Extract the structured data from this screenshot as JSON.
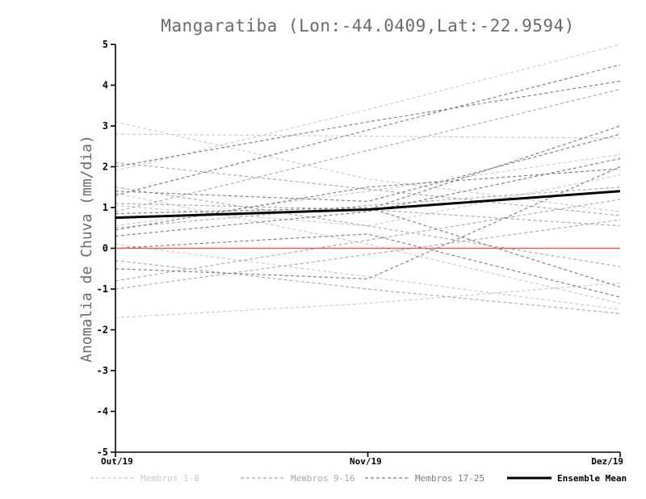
{
  "chart_data": {
    "type": "line",
    "title": "Mangaratiba (Lon:-44.0409,Lat:-22.9594)",
    "ylabel": "Anomalia de Chuva (mm/dia)",
    "xlabel": "",
    "x_tick_labels": [
      "Out/19",
      "Nov/19",
      "Dez/19"
    ],
    "ylim": [
      -5,
      5
    ],
    "y_ticks": [
      -5,
      -4,
      -3,
      -2,
      -1,
      0,
      1,
      2,
      3,
      4,
      5
    ],
    "grid": false,
    "legend_position": "bottom",
    "zero_line_color": "#e06060",
    "groups": [
      {
        "name": "Membros 1-8",
        "color": "#c9c9c9",
        "members": [
          [
            1.9,
            3.4,
            5.0
          ],
          [
            2.8,
            2.75,
            2.7
          ],
          [
            1.35,
            0.1,
            -1.35
          ],
          [
            0.55,
            1.4,
            2.3
          ],
          [
            -1.7,
            -1.35,
            -0.85
          ],
          [
            0.1,
            -0.7,
            -1.5
          ],
          [
            3.1,
            1.7,
            0.9
          ],
          [
            1.05,
            0.55,
            1.8
          ]
        ]
      },
      {
        "name": "Membros 9-16",
        "color": "#a8a8a8",
        "members": [
          [
            0.9,
            2.4,
            3.9
          ],
          [
            2.1,
            1.45,
            0.8
          ],
          [
            -0.8,
            0.2,
            1.2
          ],
          [
            1.1,
            0.95,
            0.55
          ],
          [
            -0.3,
            -1.0,
            -1.6
          ],
          [
            0.5,
            1.05,
            1.5
          ],
          [
            1.5,
            0.55,
            -0.45
          ],
          [
            -1.0,
            -0.15,
            0.7
          ]
        ]
      },
      {
        "name": "Membros 17-25",
        "color": "#7d7d7d",
        "members": [
          [
            1.3,
            2.9,
            4.5
          ],
          [
            2.0,
            3.1,
            4.1
          ],
          [
            0.75,
            0.95,
            3.0
          ],
          [
            0.3,
            0.9,
            2.2
          ],
          [
            1.4,
            1.15,
            2.8
          ],
          [
            0.0,
            0.35,
            -1.2
          ],
          [
            0.85,
            1.0,
            -0.95
          ],
          [
            -0.5,
            -0.75,
            2.0
          ],
          [
            0.45,
            1.5,
            1.95
          ]
        ]
      }
    ],
    "ensemble_mean": {
      "name": "Ensemble Mean",
      "color": "#000000",
      "values": [
        0.75,
        0.95,
        1.4
      ]
    }
  }
}
